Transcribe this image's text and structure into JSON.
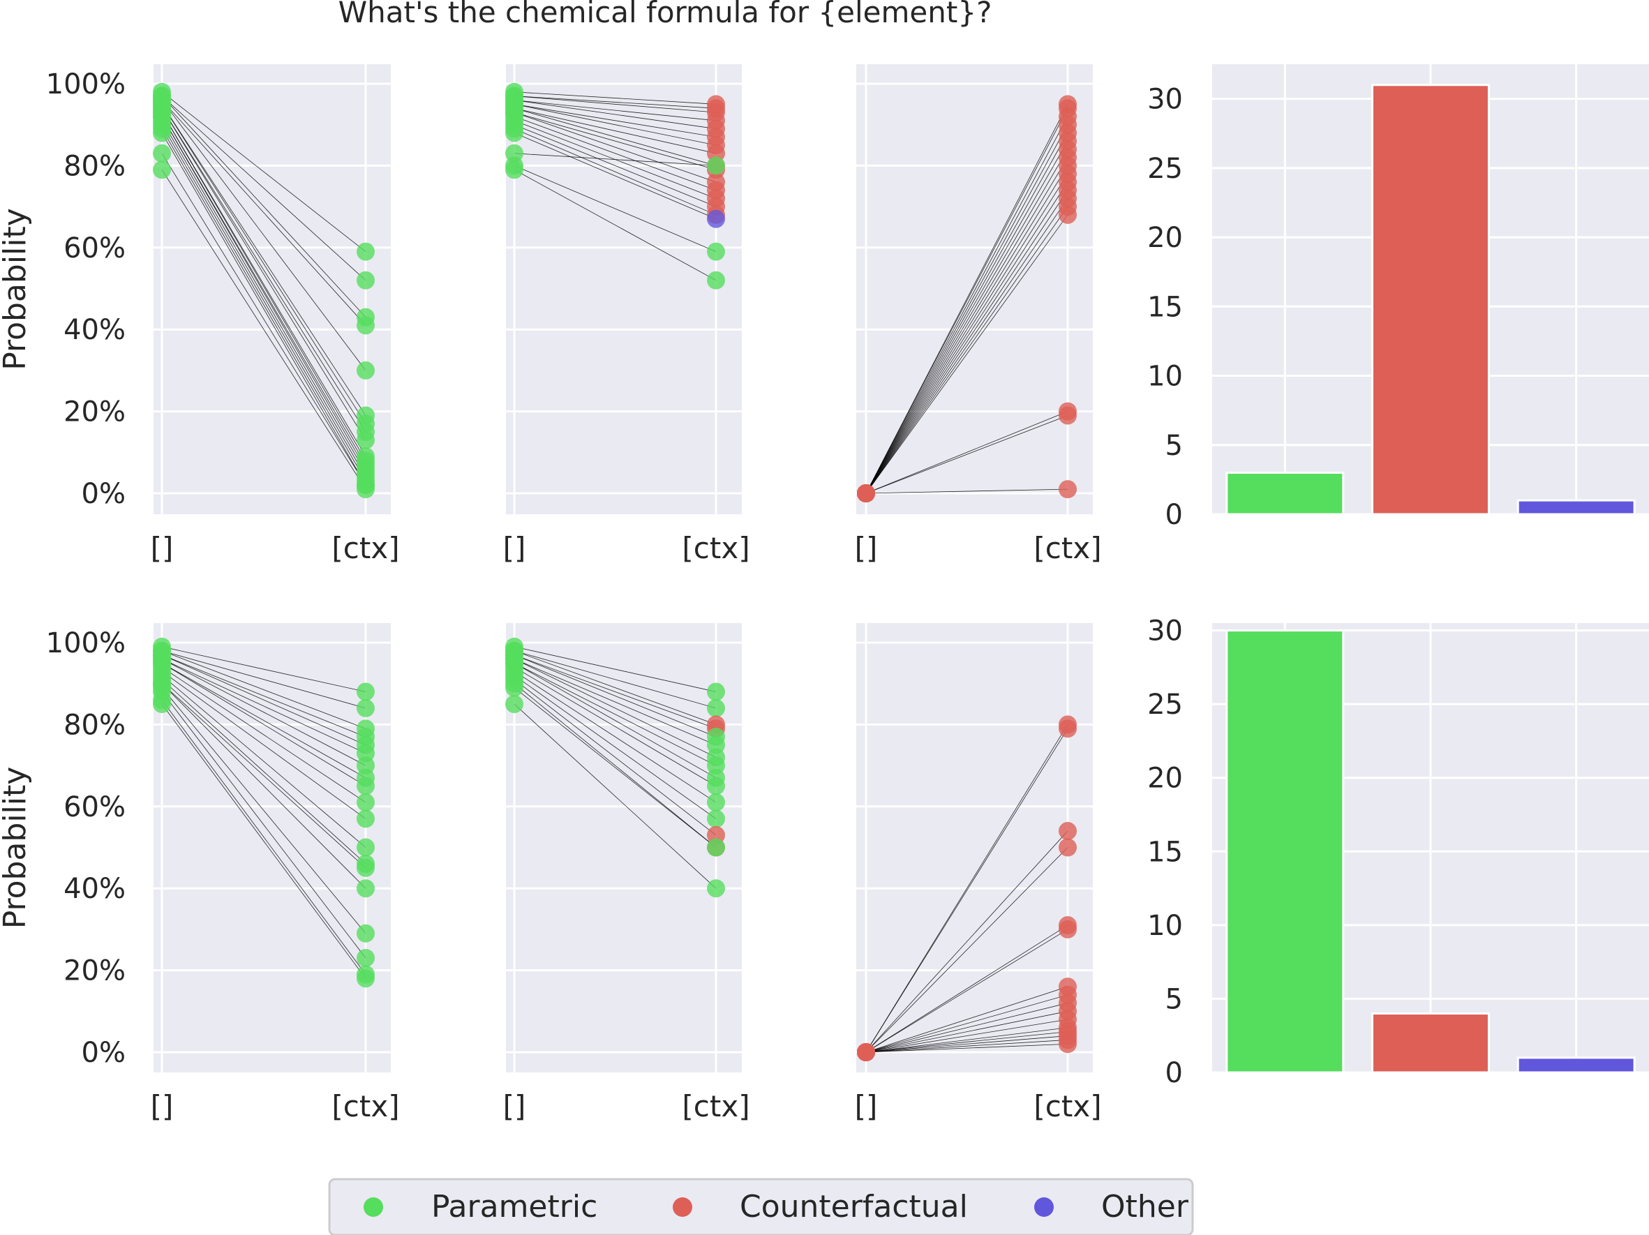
{
  "chart_data": {
    "title": "What's the chemical formula for {element}?",
    "type": "slope + bar",
    "colors": {
      "Parametric": "#55dd5e",
      "Counterfactual": "#dd5f56",
      "Other": "#6157dd"
    },
    "legend": {
      "placement": "bottom-center",
      "entries": [
        "Parametric",
        "Counterfactual",
        "Other"
      ]
    },
    "grid": true,
    "panels": [
      {
        "row": 0,
        "col": 0,
        "type": "slope",
        "ylabel": "Probability",
        "ylim": [
          0,
          1
        ],
        "yticks": [
          "0%",
          "20%",
          "40%",
          "60%",
          "80%",
          "100%"
        ],
        "xticks": [
          "[]",
          "[ctx]"
        ],
        "pairs": [
          [
            0.98,
            0.59,
            "Parametric"
          ],
          [
            0.97,
            0.52,
            "Parametric"
          ],
          [
            0.97,
            0.43,
            "Parametric"
          ],
          [
            0.96,
            0.41,
            "Parametric"
          ],
          [
            0.96,
            0.3,
            "Parametric"
          ],
          [
            0.95,
            0.19,
            "Parametric"
          ],
          [
            0.95,
            0.17,
            "Parametric"
          ],
          [
            0.94,
            0.15,
            "Parametric"
          ],
          [
            0.94,
            0.13,
            "Parametric"
          ],
          [
            0.93,
            0.09,
            "Parametric"
          ],
          [
            0.93,
            0.08,
            "Parametric"
          ],
          [
            0.92,
            0.07,
            "Parametric"
          ],
          [
            0.92,
            0.06,
            "Parametric"
          ],
          [
            0.91,
            0.05,
            "Parametric"
          ],
          [
            0.9,
            0.04,
            "Parametric"
          ],
          [
            0.89,
            0.03,
            "Parametric"
          ],
          [
            0.88,
            0.02,
            "Parametric"
          ],
          [
            0.83,
            0.02,
            "Parametric"
          ],
          [
            0.79,
            0.01,
            "Parametric"
          ]
        ]
      },
      {
        "row": 0,
        "col": 1,
        "type": "slope",
        "ylim": [
          0,
          1
        ],
        "xticks": [
          "[]",
          "[ctx]"
        ],
        "pairs": [
          [
            0.98,
            0.95,
            "Counterfactual"
          ],
          [
            0.97,
            0.94,
            "Counterfactual"
          ],
          [
            0.97,
            0.93,
            "Counterfactual"
          ],
          [
            0.96,
            0.91,
            "Counterfactual"
          ],
          [
            0.96,
            0.89,
            "Counterfactual"
          ],
          [
            0.95,
            0.87,
            "Counterfactual"
          ],
          [
            0.95,
            0.85,
            "Counterfactual"
          ],
          [
            0.94,
            0.83,
            "Counterfactual"
          ],
          [
            0.94,
            0.8,
            "Counterfactual"
          ],
          [
            0.93,
            0.79,
            "Counterfactual"
          ],
          [
            0.93,
            0.76,
            "Counterfactual"
          ],
          [
            0.92,
            0.74,
            "Counterfactual"
          ],
          [
            0.91,
            0.72,
            "Counterfactual"
          ],
          [
            0.9,
            0.7,
            "Counterfactual"
          ],
          [
            0.89,
            0.68,
            "Counterfactual"
          ],
          [
            0.88,
            0.67,
            "Other"
          ],
          [
            0.83,
            0.8,
            "Parametric"
          ],
          [
            0.8,
            0.59,
            "Parametric"
          ],
          [
            0.79,
            0.52,
            "Parametric"
          ]
        ]
      },
      {
        "row": 0,
        "col": 2,
        "type": "slope",
        "ylim": [
          0,
          1
        ],
        "xticks": [
          "[]",
          "[ctx]"
        ],
        "pairs": [
          [
            0.0,
            0.95,
            "Counterfactual"
          ],
          [
            0.0,
            0.94,
            "Counterfactual"
          ],
          [
            0.0,
            0.92,
            "Counterfactual"
          ],
          [
            0.0,
            0.9,
            "Counterfactual"
          ],
          [
            0.0,
            0.88,
            "Counterfactual"
          ],
          [
            0.0,
            0.86,
            "Counterfactual"
          ],
          [
            0.0,
            0.84,
            "Counterfactual"
          ],
          [
            0.0,
            0.82,
            "Counterfactual"
          ],
          [
            0.0,
            0.8,
            "Counterfactual"
          ],
          [
            0.0,
            0.78,
            "Counterfactual"
          ],
          [
            0.0,
            0.76,
            "Counterfactual"
          ],
          [
            0.0,
            0.74,
            "Counterfactual"
          ],
          [
            0.0,
            0.72,
            "Counterfactual"
          ],
          [
            0.0,
            0.7,
            "Counterfactual"
          ],
          [
            0.0,
            0.68,
            "Counterfactual"
          ],
          [
            0.0,
            0.2,
            "Counterfactual"
          ],
          [
            0.0,
            0.19,
            "Counterfactual"
          ],
          [
            0.0,
            0.01,
            "Counterfactual"
          ]
        ]
      },
      {
        "row": 0,
        "col": 3,
        "type": "bar",
        "categories": [
          "Parametric",
          "Counterfactual",
          "Other"
        ],
        "values": [
          3,
          31,
          1
        ],
        "ylim": [
          0,
          32.5
        ],
        "yticks": [
          "0",
          "5",
          "10",
          "15",
          "20",
          "25",
          "30"
        ]
      },
      {
        "row": 1,
        "col": 0,
        "type": "slope",
        "ylabel": "Probability",
        "ylim": [
          0,
          1
        ],
        "yticks": [
          "0%",
          "20%",
          "40%",
          "60%",
          "80%",
          "100%"
        ],
        "xticks": [
          "[]",
          "[ctx]"
        ],
        "pairs": [
          [
            0.99,
            0.88,
            "Parametric"
          ],
          [
            0.98,
            0.84,
            "Parametric"
          ],
          [
            0.98,
            0.79,
            "Parametric"
          ],
          [
            0.97,
            0.77,
            "Parametric"
          ],
          [
            0.97,
            0.75,
            "Parametric"
          ],
          [
            0.96,
            0.73,
            "Parametric"
          ],
          [
            0.96,
            0.7,
            "Parametric"
          ],
          [
            0.95,
            0.67,
            "Parametric"
          ],
          [
            0.95,
            0.65,
            "Parametric"
          ],
          [
            0.94,
            0.61,
            "Parametric"
          ],
          [
            0.93,
            0.57,
            "Parametric"
          ],
          [
            0.92,
            0.5,
            "Parametric"
          ],
          [
            0.91,
            0.46,
            "Parametric"
          ],
          [
            0.9,
            0.45,
            "Parametric"
          ],
          [
            0.9,
            0.4,
            "Parametric"
          ],
          [
            0.89,
            0.29,
            "Parametric"
          ],
          [
            0.88,
            0.23,
            "Parametric"
          ],
          [
            0.86,
            0.19,
            "Parametric"
          ],
          [
            0.85,
            0.18,
            "Parametric"
          ]
        ]
      },
      {
        "row": 1,
        "col": 1,
        "type": "slope",
        "ylim": [
          0,
          1
        ],
        "xticks": [
          "[]",
          "[ctx]"
        ],
        "pairs": [
          [
            0.99,
            0.88,
            "Parametric"
          ],
          [
            0.98,
            0.84,
            "Parametric"
          ],
          [
            0.98,
            0.8,
            "Counterfactual"
          ],
          [
            0.97,
            0.79,
            "Counterfactual"
          ],
          [
            0.97,
            0.77,
            "Parametric"
          ],
          [
            0.96,
            0.75,
            "Parametric"
          ],
          [
            0.96,
            0.72,
            "Parametric"
          ],
          [
            0.95,
            0.7,
            "Parametric"
          ],
          [
            0.95,
            0.67,
            "Parametric"
          ],
          [
            0.94,
            0.65,
            "Parametric"
          ],
          [
            0.93,
            0.61,
            "Parametric"
          ],
          [
            0.92,
            0.57,
            "Parametric"
          ],
          [
            0.91,
            0.53,
            "Counterfactual"
          ],
          [
            0.9,
            0.5,
            "Counterfactual"
          ],
          [
            0.89,
            0.5,
            "Parametric"
          ],
          [
            0.85,
            0.4,
            "Parametric"
          ]
        ]
      },
      {
        "row": 1,
        "col": 2,
        "type": "slope",
        "ylim": [
          0,
          1
        ],
        "xticks": [
          "[]",
          "[ctx]"
        ],
        "pairs": [
          [
            0.0,
            0.8,
            "Counterfactual"
          ],
          [
            0.0,
            0.79,
            "Counterfactual"
          ],
          [
            0.0,
            0.54,
            "Counterfactual"
          ],
          [
            0.0,
            0.5,
            "Counterfactual"
          ],
          [
            0.0,
            0.31,
            "Counterfactual"
          ],
          [
            0.0,
            0.3,
            "Counterfactual"
          ],
          [
            0.0,
            0.16,
            "Counterfactual"
          ],
          [
            0.0,
            0.14,
            "Counterfactual"
          ],
          [
            0.0,
            0.12,
            "Counterfactual"
          ],
          [
            0.0,
            0.1,
            "Counterfactual"
          ],
          [
            0.0,
            0.08,
            "Counterfactual"
          ],
          [
            0.0,
            0.06,
            "Counterfactual"
          ],
          [
            0.0,
            0.05,
            "Counterfactual"
          ],
          [
            0.0,
            0.04,
            "Counterfactual"
          ],
          [
            0.0,
            0.03,
            "Counterfactual"
          ],
          [
            0.0,
            0.02,
            "Counterfactual"
          ]
        ]
      },
      {
        "row": 1,
        "col": 3,
        "type": "bar",
        "categories": [
          "Parametric",
          "Counterfactual",
          "Other"
        ],
        "values": [
          30,
          4,
          1
        ],
        "ylim": [
          0,
          30.5
        ],
        "yticks": [
          "0",
          "5",
          "10",
          "15",
          "20",
          "25",
          "30"
        ]
      }
    ]
  }
}
